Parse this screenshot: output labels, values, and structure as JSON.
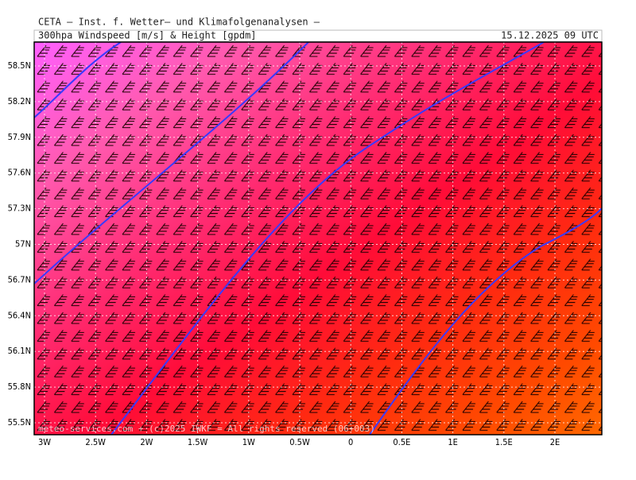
{
  "header": {
    "institute": "CETA – Inst. f. Wetter– und Klimafolgenanalysen –",
    "product": "300hpa Windspeed [m/s] & Height [gpdm]",
    "datetime": "15.12.2025 09 UTC"
  },
  "map": {
    "lat_labels": [
      "58.5N",
      "58.2N",
      "57.9N",
      "57.6N",
      "57.3N",
      "57N",
      "56.7N",
      "56.4N",
      "56.1N",
      "55.8N",
      "55.5N"
    ],
    "lon_labels": [
      "3W",
      "2.5W",
      "2W",
      "1.5W",
      "1W",
      "0.5W",
      "0",
      "0.5E",
      "1E",
      "1.5E",
      "2E"
    ],
    "footer": "meteo-services.com + (c)2025 IWKF = All rights reserved (06+003)"
  }
}
